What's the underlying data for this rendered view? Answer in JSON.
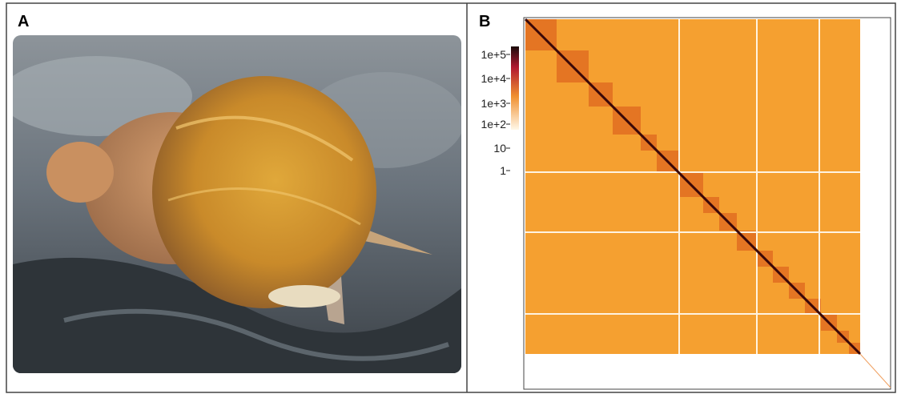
{
  "panels": [
    {
      "label": "A"
    },
    {
      "label": "B",
      "colorbar": {
        "ticks": [
          "1e+5",
          "1e+4",
          "1e+3",
          "1e+2",
          "10",
          "1"
        ]
      }
    }
  ]
}
